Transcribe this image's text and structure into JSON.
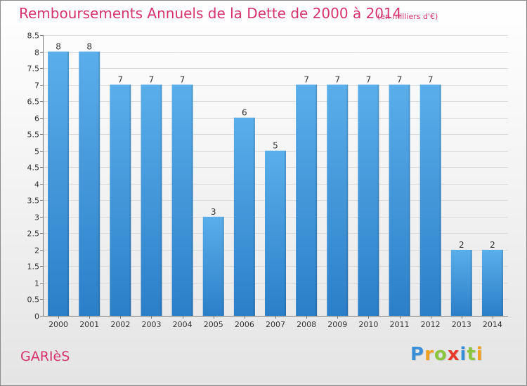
{
  "title": "Remboursements Annuels de la Dette de 2000 à 2014",
  "unit": "(en milliers d'€)",
  "commune": "GARIèS",
  "logo": {
    "text": "Proxiti",
    "letters": [
      {
        "char": "P",
        "color": "#3a8fd9"
      },
      {
        "char": "r",
        "color": "#f0a020"
      },
      {
        "char": "o",
        "color": "#8cc63f"
      },
      {
        "char": "x",
        "color": "#e8382a"
      },
      {
        "char": "i",
        "color": "#3a8fd9"
      },
      {
        "char": "t",
        "color": "#8cc63f"
      },
      {
        "char": "i",
        "color": "#f0a020"
      }
    ]
  },
  "colors": {
    "accent": "#d6336e",
    "bar_top": "#5aaeea",
    "bar_bottom": "#2b7fc8",
    "grid": "#d9d9d9",
    "axis": "#7a7a7a"
  },
  "chart_data": {
    "type": "bar",
    "categories": [
      "2000",
      "2001",
      "2002",
      "2003",
      "2004",
      "2005",
      "2006",
      "2007",
      "2008",
      "2009",
      "2010",
      "2011",
      "2012",
      "2013",
      "2014"
    ],
    "values": [
      8,
      8,
      7,
      7,
      7,
      3,
      6,
      5,
      7,
      7,
      7,
      7,
      7,
      2,
      2
    ],
    "data_labels": [
      "8",
      "8",
      "7",
      "7",
      "7",
      "3",
      "6",
      "5",
      "7",
      "7",
      "7",
      "7",
      "7",
      "2",
      "2"
    ],
    "ylim": [
      0,
      8.5
    ],
    "yticks": [
      0,
      0.5,
      1,
      1.5,
      2,
      2.5,
      3,
      3.5,
      4,
      4.5,
      5,
      5.5,
      6,
      6.5,
      7,
      7.5,
      8,
      8.5
    ],
    "ytick_labels": [
      "0",
      "0.5",
      "1",
      "1.5",
      "2",
      "2.5",
      "3",
      "3.5",
      "4",
      "4.5",
      "5",
      "5.5",
      "6",
      "6.5",
      "7",
      "7.5",
      "8",
      "8.5"
    ],
    "grid": true,
    "xlabel": "",
    "ylabel": ""
  }
}
